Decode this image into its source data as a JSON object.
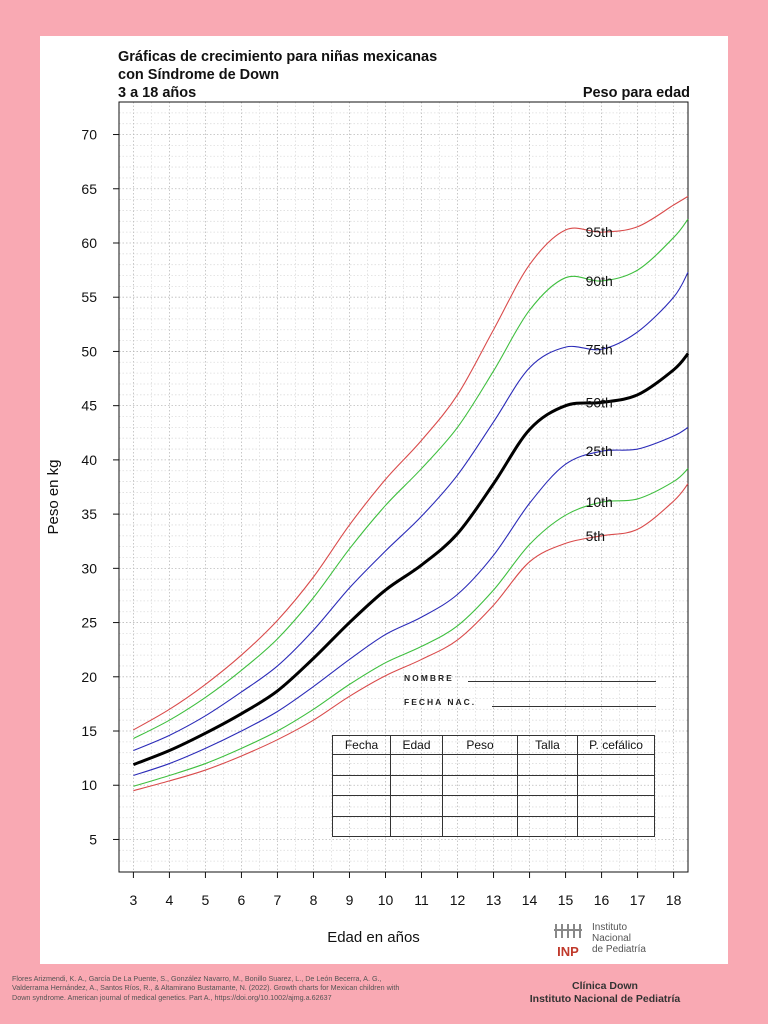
{
  "header": {
    "title_line1": "Gráficas de crecimiento para niñas mexicanas",
    "title_line2": "con Síndrome de Down",
    "title_line3": "3 a 18 años",
    "subtitle": "Peso para edad"
  },
  "form": {
    "name_label": "NOMBRE",
    "dob_label": "FECHA NAC."
  },
  "record_table": {
    "headers": [
      "Fecha",
      "Edad",
      "Peso",
      "Talla",
      "P. cefálico"
    ],
    "empty_rows": 4
  },
  "logo": {
    "abbr": "INP",
    "line1": "Instituto",
    "line2": "Nacional",
    "line3": "de Pediatría"
  },
  "citation": "Flores Arizmendi, K. A., García De La Puente, S., González Navarro, M., Bonillo Suarez, L., De León Becerra, A. G., Valderrama Hernández, A., Santos Ríos, R., & Altamirano Bustamante, N. (2022). Growth charts for Mexican children with Down syndrome. American journal of medical genetics. Part A., https://doi.org/10.1002/ajmg.a.62637",
  "clinic": {
    "line1": "Clínica Down",
    "line2": "Instituto Nacional de Pediatría"
  },
  "colors": {
    "background": "#f9a9b3",
    "p95": "#d94b4b",
    "p90": "#3fbf3f",
    "p75": "#2b2bb8",
    "p50": "#000000",
    "p25": "#2b2bb8",
    "p10": "#3fbf3f",
    "p5": "#d94b4b"
  },
  "chart_data": {
    "type": "line",
    "title": "Peso para edad",
    "xlabel": "Edad en años",
    "ylabel": "Peso en kg",
    "xlim": [
      2.6,
      18.4
    ],
    "ylim": [
      2,
      73
    ],
    "xticks": [
      3,
      4,
      5,
      6,
      7,
      8,
      9,
      10,
      11,
      12,
      13,
      14,
      15,
      16,
      17,
      18
    ],
    "yticks": [
      5,
      10,
      15,
      20,
      25,
      30,
      35,
      40,
      45,
      50,
      55,
      60,
      65,
      70
    ],
    "grid": true,
    "x": [
      3,
      4,
      5,
      6,
      7,
      8,
      9,
      10,
      11,
      12,
      13,
      14,
      15,
      16,
      17,
      18,
      18.4
    ],
    "series": [
      {
        "name": "95th",
        "color_key": "p95",
        "values": [
          15.1,
          17.0,
          19.3,
          22.0,
          25.2,
          29.2,
          34.0,
          38.2,
          41.8,
          46.0,
          52.0,
          58.0,
          61.2,
          61.0,
          61.5,
          63.5,
          64.3
        ]
      },
      {
        "name": "90th",
        "color_key": "p90",
        "values": [
          14.3,
          16.0,
          18.1,
          20.6,
          23.5,
          27.3,
          31.8,
          35.8,
          39.2,
          43.0,
          48.2,
          53.8,
          56.8,
          56.5,
          57.5,
          60.5,
          62.2
        ]
      },
      {
        "name": "75th",
        "color_key": "p75",
        "values": [
          13.2,
          14.6,
          16.4,
          18.6,
          21.0,
          24.3,
          28.2,
          31.6,
          34.8,
          38.6,
          43.5,
          48.5,
          50.4,
          50.2,
          51.8,
          55.0,
          57.3
        ]
      },
      {
        "name": "50th",
        "color_key": "p50",
        "values": [
          11.9,
          13.2,
          14.8,
          16.6,
          18.7,
          21.7,
          25.0,
          28.0,
          30.3,
          33.2,
          37.8,
          42.8,
          45.0,
          45.3,
          46.0,
          48.3,
          49.8
        ]
      },
      {
        "name": "25th",
        "color_key": "p25",
        "values": [
          10.9,
          12.0,
          13.4,
          15.0,
          16.8,
          19.1,
          21.6,
          23.9,
          25.5,
          27.6,
          31.2,
          36.0,
          39.6,
          40.8,
          41.0,
          42.2,
          43.0
        ]
      },
      {
        "name": "10th",
        "color_key": "p10",
        "values": [
          9.9,
          10.9,
          12.0,
          13.4,
          15.0,
          17.0,
          19.3,
          21.3,
          22.8,
          24.7,
          28.0,
          32.2,
          34.9,
          36.1,
          36.4,
          38.0,
          39.2
        ]
      },
      {
        "name": "5th",
        "color_key": "p5",
        "values": [
          9.5,
          10.4,
          11.4,
          12.7,
          14.2,
          16.0,
          18.2,
          20.1,
          21.6,
          23.4,
          26.6,
          30.6,
          32.3,
          33.0,
          33.6,
          36.2,
          37.8
        ]
      }
    ],
    "label_positions_x": [
      16.0,
      16.0,
      16.0,
      16.0,
      16.0,
      16.0,
      16.0
    ]
  }
}
